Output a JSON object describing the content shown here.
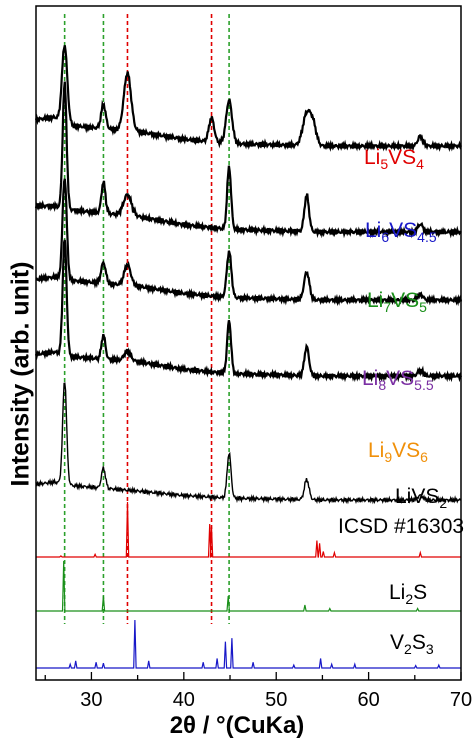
{
  "chart_data": {
    "type": "line",
    "title": "",
    "xlabel": "2θ / °(CuKa)",
    "ylabel": "Intensity (arb. unit)",
    "xlim": [
      24,
      70
    ],
    "x_ticks": [
      30,
      40,
      50,
      60,
      70
    ],
    "grid": false,
    "legend": "none (labels placed beside each curve)",
    "reference_lines": [
      {
        "x": 27.1,
        "color": "#2ca02c",
        "style": "dashed"
      },
      {
        "x": 31.3,
        "color": "#2ca02c",
        "style": "dashed"
      },
      {
        "x": 33.9,
        "color": "#e00000",
        "style": "dashed"
      },
      {
        "x": 43.0,
        "color": "#e00000",
        "style": "dashed"
      },
      {
        "x": 44.9,
        "color": "#2ca02c",
        "style": "dashed"
      }
    ],
    "series": [
      {
        "name": "Li5VS4",
        "label_main": "Li",
        "label_parts": [
          [
            "Li",
            ""
          ],
          [
            "5",
            "sub"
          ],
          [
            "VS",
            ""
          ],
          [
            "4",
            "sub"
          ]
        ],
        "label_color": "#e00000",
        "line_color": "#000000",
        "baseline": 0.37,
        "bg": [
          [
            24,
            0.55
          ],
          [
            26,
            0.6
          ],
          [
            28,
            0.42
          ],
          [
            35,
            0.3
          ],
          [
            40,
            0.14
          ],
          [
            45,
            0.05
          ],
          [
            55,
            0.0
          ],
          [
            70,
            0.0
          ]
        ],
        "peaks": [
          [
            27.1,
            1.6,
            0.4
          ],
          [
            31.3,
            0.5,
            0.35
          ],
          [
            33.9,
            1.2,
            0.55
          ],
          [
            43.0,
            0.5,
            0.4
          ],
          [
            44.9,
            0.9,
            0.45
          ],
          [
            53.3,
            0.65,
            0.6
          ],
          [
            54.0,
            0.4,
            0.5
          ],
          [
            65.6,
            0.2,
            0.4
          ]
        ]
      },
      {
        "name": "Li6VS4.5",
        "label_parts": [
          [
            "Li",
            ""
          ],
          [
            "6",
            "sub"
          ],
          [
            "VS",
            ""
          ],
          [
            "4.5",
            "sub"
          ]
        ],
        "label_color": "#1818c8",
        "line_color": "#000000",
        "baseline": 0.27,
        "bg": [
          [
            24,
            0.5
          ],
          [
            26,
            0.5
          ],
          [
            28,
            0.42
          ],
          [
            35,
            0.3
          ],
          [
            40,
            0.14
          ],
          [
            45,
            0.05
          ],
          [
            55,
            0.0
          ],
          [
            70,
            0.0
          ]
        ],
        "peaks": [
          [
            27.1,
            2.4,
            0.3
          ],
          [
            31.3,
            0.6,
            0.3
          ],
          [
            33.9,
            0.4,
            0.6
          ],
          [
            44.9,
            1.2,
            0.3
          ],
          [
            53.3,
            0.7,
            0.35
          ],
          [
            65.6,
            0.15,
            0.4
          ]
        ]
      },
      {
        "name": "Li7VS5",
        "label_parts": [
          [
            "Li",
            ""
          ],
          [
            "7",
            "sub"
          ],
          [
            "VS",
            ""
          ],
          [
            "5",
            "sub"
          ]
        ],
        "label_color": "#1a8f1a",
        "line_color": "#000000",
        "baseline": 0.4,
        "bg": [
          [
            24,
            0.45
          ],
          [
            26,
            0.5
          ],
          [
            28,
            0.42
          ],
          [
            35,
            0.3
          ],
          [
            40,
            0.14
          ],
          [
            45,
            0.05
          ],
          [
            55,
            0.0
          ],
          [
            70,
            0.0
          ]
        ],
        "peaks": [
          [
            27.1,
            2.2,
            0.32
          ],
          [
            31.3,
            0.45,
            0.35
          ],
          [
            33.9,
            0.45,
            0.5
          ],
          [
            44.9,
            1.0,
            0.35
          ],
          [
            53.3,
            0.6,
            0.4
          ],
          [
            65.6,
            0.12,
            0.4
          ]
        ]
      },
      {
        "name": "Li8VS5.5",
        "label_parts": [
          [
            "Li",
            ""
          ],
          [
            "8",
            "sub"
          ],
          [
            "VS",
            ""
          ],
          [
            "5.5",
            "sub"
          ]
        ],
        "label_color": "#7b2fa3",
        "line_color": "#000000",
        "baseline": 0.2,
        "bg": [
          [
            24,
            0.45
          ],
          [
            26,
            0.5
          ],
          [
            28,
            0.4
          ],
          [
            35,
            0.3
          ],
          [
            40,
            0.14
          ],
          [
            45,
            0.05
          ],
          [
            55,
            0.0
          ],
          [
            70,
            0.0
          ]
        ],
        "peaks": [
          [
            27.1,
            2.4,
            0.3
          ],
          [
            31.3,
            0.5,
            0.3
          ],
          [
            33.9,
            0.2,
            0.5
          ],
          [
            44.9,
            1.1,
            0.3
          ],
          [
            53.3,
            0.6,
            0.35
          ],
          [
            65.6,
            0.12,
            0.4
          ]
        ]
      },
      {
        "name": "Li9VS6",
        "label_parts": [
          [
            "Li",
            ""
          ],
          [
            "9",
            "sub"
          ],
          [
            "VS",
            ""
          ],
          [
            "6",
            "sub"
          ]
        ],
        "label_color": "#f0900a",
        "line_color": "#000000",
        "baseline": 0.1,
        "bg": [
          [
            24,
            0.35
          ],
          [
            26,
            0.4
          ],
          [
            28,
            0.32
          ],
          [
            35,
            0.2
          ],
          [
            40,
            0.1
          ],
          [
            45,
            0.04
          ],
          [
            55,
            0.0
          ],
          [
            70,
            0.0
          ]
        ],
        "peaks": [
          [
            27.1,
            2.3,
            0.3
          ],
          [
            31.3,
            0.45,
            0.3
          ],
          [
            44.9,
            1.0,
            0.3
          ],
          [
            53.3,
            0.45,
            0.35
          ],
          [
            65.6,
            0.1,
            0.4
          ]
        ]
      }
    ],
    "references": [
      {
        "name": "LiVS2",
        "label_lines": [
          [
            [
              "LiVS",
              ""
            ],
            [
              "2",
              "sub"
            ]
          ],
          [
            [
              "ICSD #16303",
              ""
            ]
          ]
        ],
        "color": "#e00000",
        "sticks": [
          [
            26.7,
            0.02
          ],
          [
            30.4,
            0.05
          ],
          [
            33.9,
            1.0
          ],
          [
            42.8,
            0.6
          ],
          [
            43.0,
            0.55
          ],
          [
            54.4,
            0.3
          ],
          [
            54.7,
            0.25
          ],
          [
            55.1,
            0.1
          ],
          [
            56.3,
            0.08
          ],
          [
            65.6,
            0.08
          ]
        ]
      },
      {
        "name": "Li2S",
        "label_lines": [
          [
            [
              "Li",
              ""
            ],
            [
              "2",
              "sub"
            ],
            [
              "S",
              ""
            ]
          ]
        ],
        "color": "#1a8f1a",
        "sticks": [
          [
            27.0,
            1.0
          ],
          [
            31.3,
            0.3
          ],
          [
            44.8,
            0.3
          ],
          [
            53.1,
            0.12
          ],
          [
            55.8,
            0.05
          ],
          [
            65.3,
            0.05
          ]
        ]
      },
      {
        "name": "V2S3",
        "label_lines": [
          [
            [
              "V",
              ""
            ],
            [
              "2",
              "sub"
            ],
            [
              "S",
              ""
            ],
            [
              "3",
              "sub"
            ]
          ]
        ],
        "color": "#1818c8",
        "sticks": [
          [
            27.7,
            0.08
          ],
          [
            28.3,
            0.15
          ],
          [
            30.5,
            0.12
          ],
          [
            31.3,
            0.1
          ],
          [
            34.7,
            1.0
          ],
          [
            36.2,
            0.15
          ],
          [
            42.1,
            0.12
          ],
          [
            43.6,
            0.2
          ],
          [
            44.5,
            0.55
          ],
          [
            45.2,
            0.62
          ],
          [
            47.5,
            0.12
          ],
          [
            51.9,
            0.06
          ],
          [
            54.8,
            0.2
          ],
          [
            56.0,
            0.08
          ],
          [
            58.5,
            0.08
          ],
          [
            65.1,
            0.05
          ],
          [
            67.6,
            0.06
          ]
        ]
      }
    ]
  }
}
